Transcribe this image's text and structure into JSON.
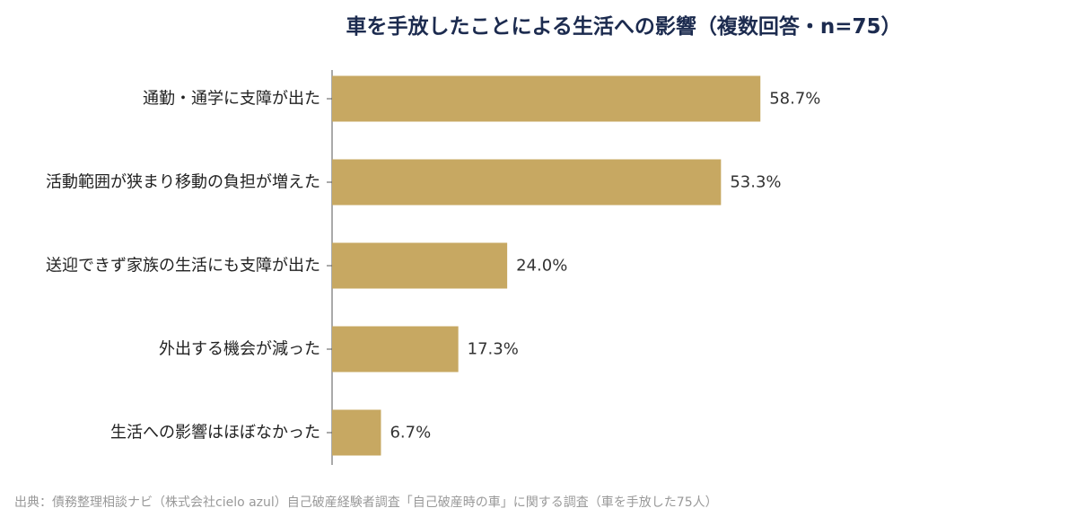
{
  "chart_data": {
    "type": "bar",
    "orientation": "horizontal",
    "title": "車を手放したことによる生活への影響（複数回答・n=75）",
    "categories": [
      "通勤・通学に支障が出た",
      "活動範囲が狭まり移動の負担が増えた",
      "送迎できず家族の生活にも支障が出た",
      "外出する機会が減った",
      "生活への影響はほぼなかった"
    ],
    "values": [
      58.7,
      53.3,
      24.0,
      17.3,
      6.7
    ],
    "value_labels": [
      "58.7%",
      "53.3%",
      "24.0%",
      "17.3%",
      "6.7%"
    ],
    "unit": "%",
    "bar_color": "#c7a862",
    "grid": false,
    "legend": "none"
  },
  "source_note": "出典：債務整理相談ナビ（株式会社cielo azul）自己破産経験者調査「自己破産時の車」に関する調査（車を手放した75人）"
}
